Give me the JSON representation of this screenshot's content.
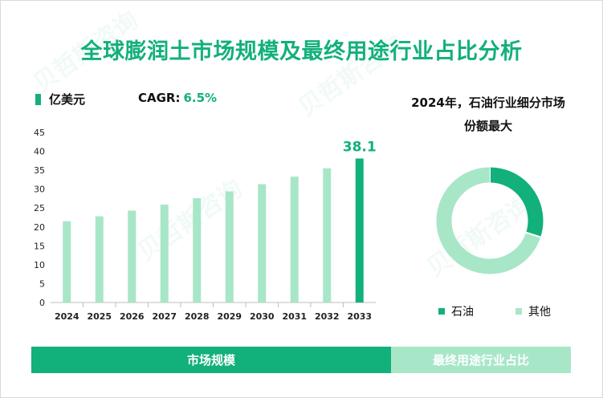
{
  "title": "全球膨润土市场规模及最终用途行业占比分析",
  "unit_legend": "亿美元",
  "cagr_label": "CAGR:",
  "cagr_value": "6.5%",
  "pie_title_line1": "2024年，石油行业细分市场",
  "pie_title_line2": "份额最大",
  "footer": {
    "left": "市场规模",
    "right": "最终用途行业占比"
  },
  "colors": {
    "accent": "#12b07a",
    "light": "#a8e6c8"
  },
  "chart_data": [
    {
      "type": "bar",
      "categories": [
        "2024",
        "2025",
        "2026",
        "2027",
        "2028",
        "2029",
        "2030",
        "2031",
        "2032",
        "2033"
      ],
      "values": [
        21.5,
        22.8,
        24.3,
        25.9,
        27.6,
        29.4,
        31.3,
        33.3,
        35.5,
        38.1
      ],
      "ylim": [
        0,
        45
      ],
      "yticks": [
        0,
        5,
        10,
        15,
        20,
        25,
        30,
        35,
        40,
        45
      ],
      "highlight_label": "38.1"
    },
    {
      "type": "pie",
      "labels": [
        "石油",
        "其他"
      ],
      "values": [
        30,
        70
      ],
      "colors": [
        "#12b07a",
        "#a8e6c8"
      ]
    }
  ]
}
